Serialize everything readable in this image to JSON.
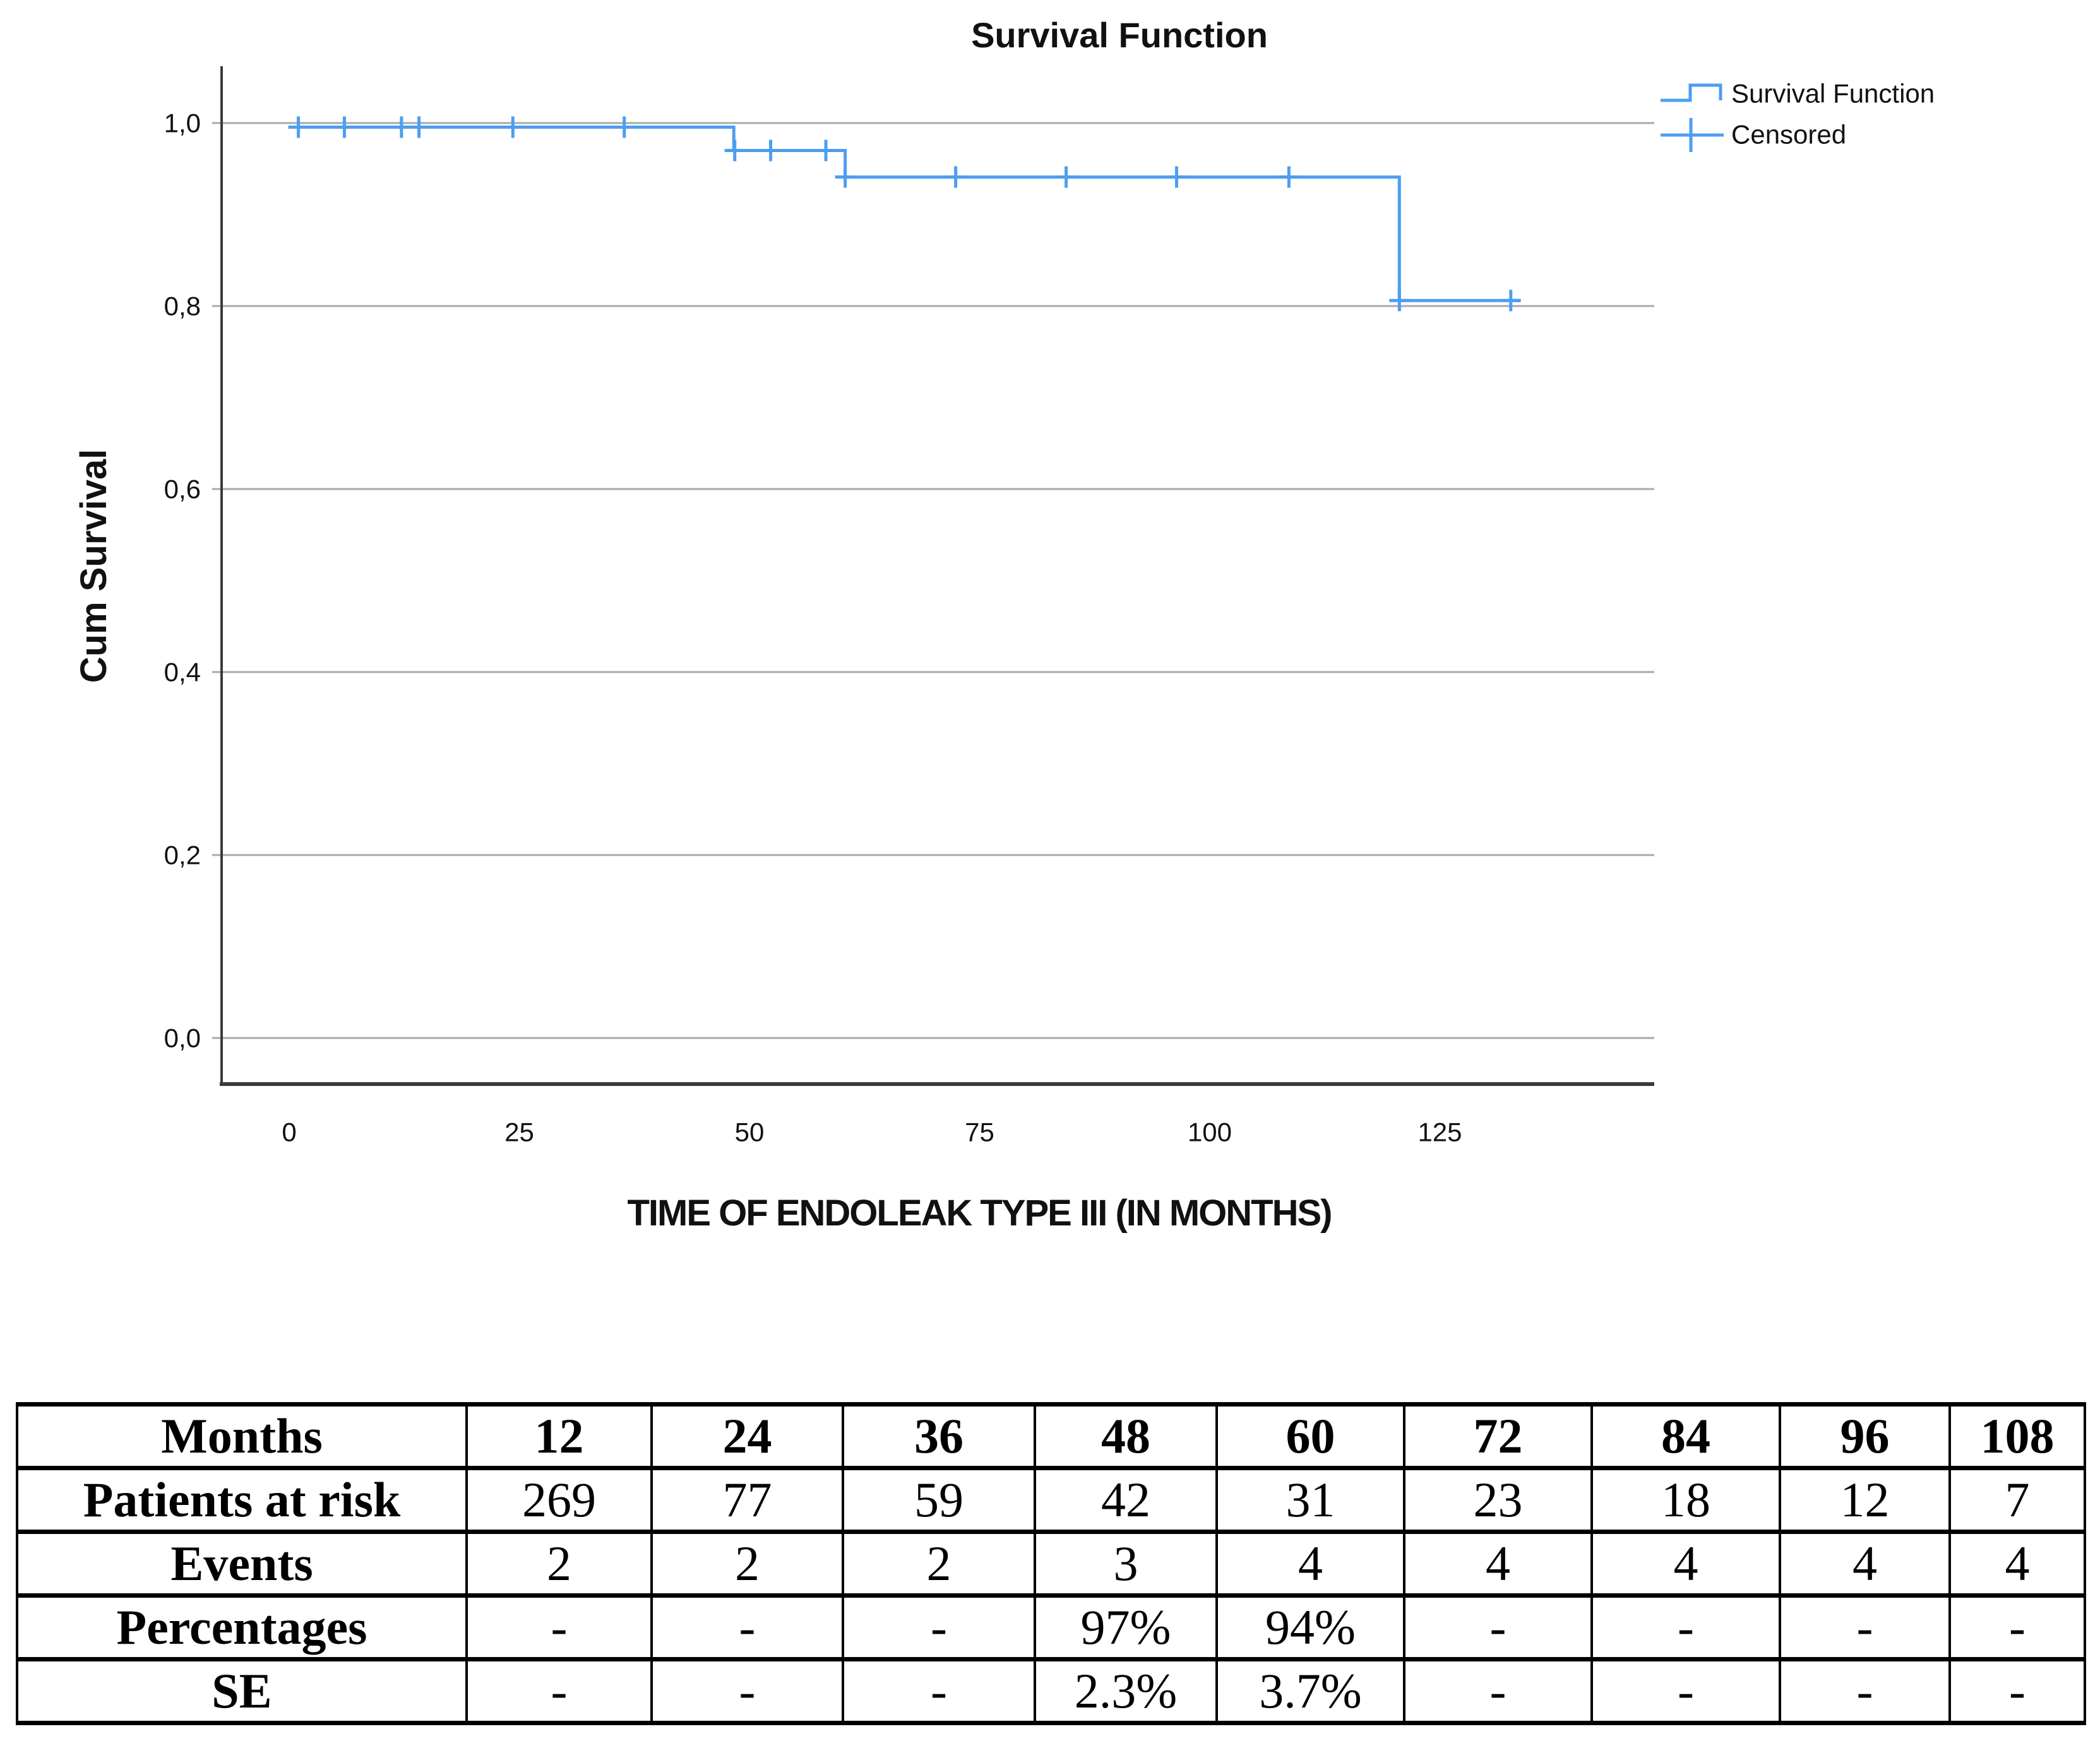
{
  "chart_data": {
    "type": "line",
    "subtype": "kaplan-meier-step",
    "title": "Survival Function",
    "xlabel": "TIME OF ENDOLEAK TYPE III (IN MONTHS)",
    "ylabel": "Cum Survival",
    "x_ticks": [
      0,
      25,
      50,
      75,
      100,
      125
    ],
    "xlim": [
      -7,
      148
    ],
    "ylim": [
      -0.05,
      1.06
    ],
    "y_ticks": [
      {
        "value": 1.0,
        "label": "1,0"
      },
      {
        "value": 0.8,
        "label": "0,8"
      },
      {
        "value": 0.6,
        "label": "0,6"
      },
      {
        "value": 0.4,
        "label": "0,4"
      },
      {
        "value": 0.2,
        "label": "0,2"
      },
      {
        "value": 0.0,
        "label": "0,0"
      }
    ],
    "grid": "horizontal-only",
    "legend_position": "top-right-outside",
    "legend": [
      {
        "label": "Survival Function",
        "marker": "step-line"
      },
      {
        "label": "Censored",
        "marker": "plus-on-line"
      }
    ],
    "series": [
      {
        "name": "Survival Function",
        "color": "#4d9ef0",
        "step_points": [
          [
            0,
            0.9955
          ],
          [
            48.3,
            0.9955
          ],
          [
            48.3,
            0.97
          ],
          [
            60.4,
            0.97
          ],
          [
            60.4,
            0.941
          ],
          [
            120.6,
            0.941
          ],
          [
            120.6,
            0.806
          ],
          [
            133.7,
            0.806
          ]
        ]
      }
    ],
    "censored": {
      "name": "Censored",
      "color": "#4d9ef0",
      "points": [
        [
          1.0,
          0.9955
        ],
        [
          6.0,
          0.9955
        ],
        [
          12.2,
          0.9955
        ],
        [
          14.1,
          0.9955
        ],
        [
          24.3,
          0.9955
        ],
        [
          36.4,
          0.9955
        ],
        [
          48.4,
          0.97
        ],
        [
          52.3,
          0.97
        ],
        [
          58.3,
          0.97
        ],
        [
          60.4,
          0.941
        ],
        [
          72.4,
          0.941
        ],
        [
          84.4,
          0.941
        ],
        [
          96.4,
          0.941
        ],
        [
          108.6,
          0.941
        ],
        [
          120.6,
          0.806
        ],
        [
          132.7,
          0.806
        ]
      ]
    },
    "colors": {
      "curve": "#4d9ef0",
      "gridline": "#a9a9a9",
      "axis": "#3a3a3a",
      "text": "#111111"
    }
  },
  "table": {
    "rows": [
      {
        "label": "Months",
        "values": [
          "12",
          "24",
          "36",
          "48",
          "60",
          "72",
          "84",
          "96",
          "108"
        ],
        "header": true
      },
      {
        "label": "Patients at risk",
        "values": [
          "269",
          "77",
          "59",
          "42",
          "31",
          "23",
          "18",
          "12",
          "7"
        ],
        "header": false
      },
      {
        "label": "Events",
        "values": [
          "2",
          "2",
          "2",
          "3",
          "4",
          "4",
          "4",
          "4",
          "4"
        ],
        "header": false
      },
      {
        "label": "Percentages",
        "values": [
          "-",
          "-",
          "-",
          "97%",
          "94%",
          "-",
          "-",
          "-",
          "-"
        ],
        "header": false
      },
      {
        "label": "SE",
        "values": [
          "-",
          "-",
          "-",
          "2.3%",
          "3.7%",
          "-",
          "-",
          "-",
          "-"
        ],
        "header": false
      }
    ]
  }
}
